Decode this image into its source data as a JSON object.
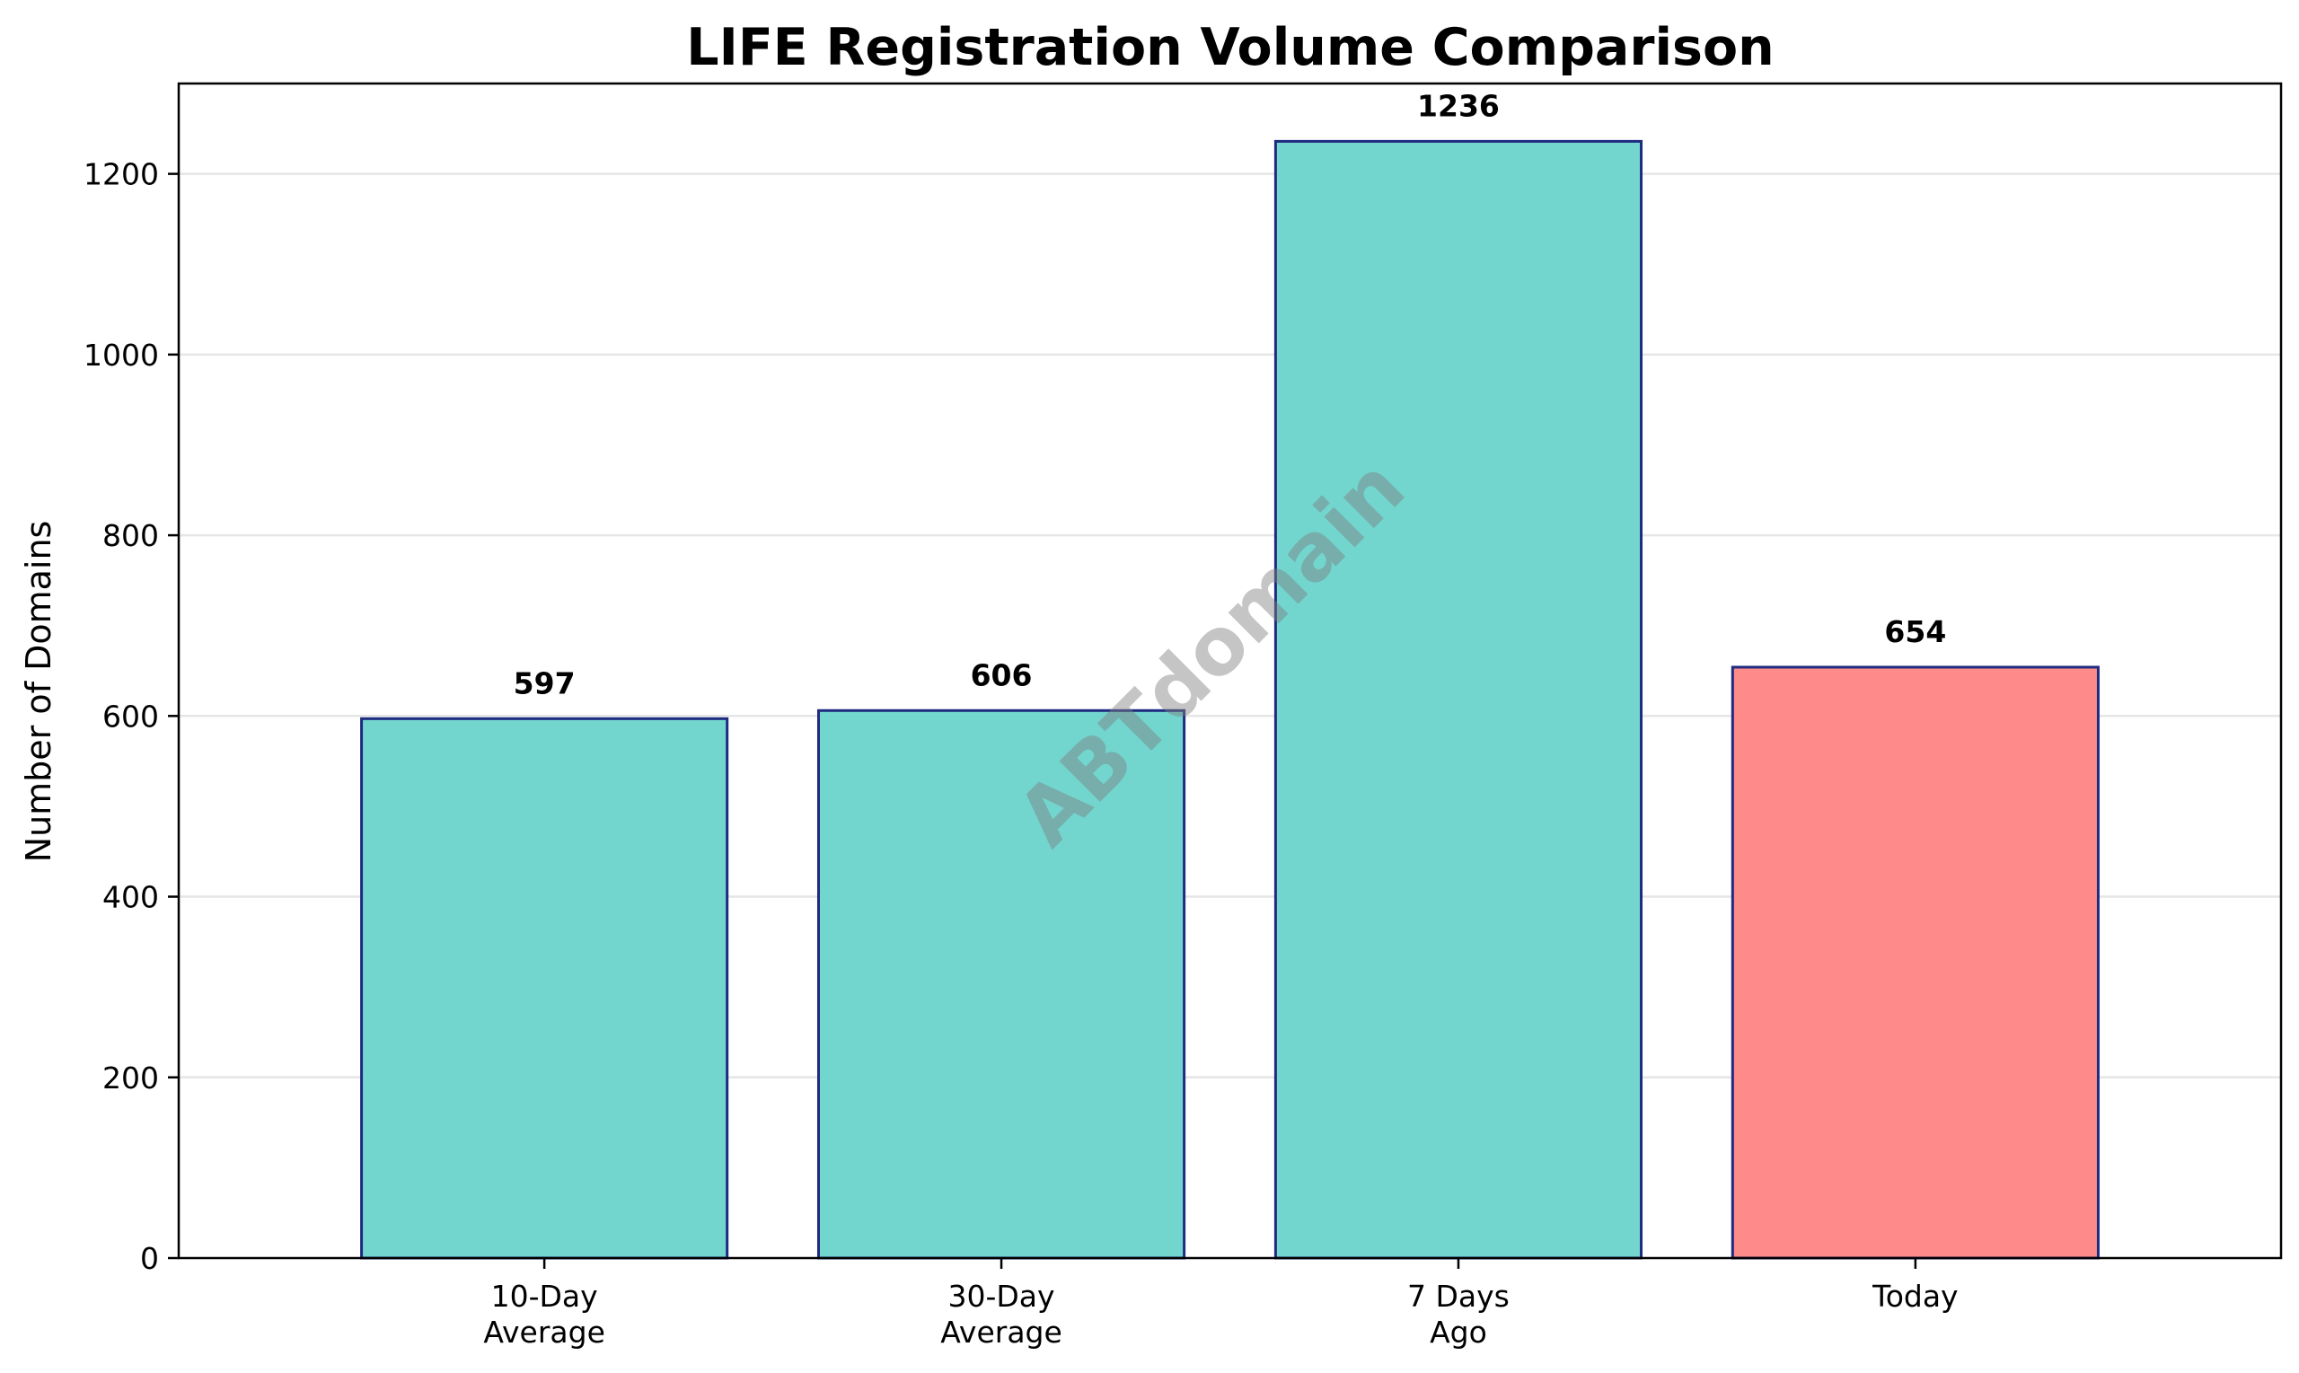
{
  "chart_data": {
    "type": "bar",
    "title": "LIFE Registration Volume Comparison",
    "xlabel": "",
    "ylabel": "Number of Domains",
    "categories": [
      [
        "10-Day",
        "Average"
      ],
      [
        "30-Day",
        "Average"
      ],
      [
        "7 Days",
        "Ago"
      ],
      [
        "Today"
      ]
    ],
    "values": [
      597,
      606,
      1236,
      654
    ],
    "data_labels": [
      "597",
      "606",
      "1236",
      "654"
    ],
    "bar_colors": [
      "#72d6cf",
      "#72d6cf",
      "#72d6cf",
      "#ff8a8a"
    ],
    "bar_edge_color": "#1f2a80",
    "ylim": [
      0,
      1300
    ],
    "yticks": [
      0,
      200,
      400,
      600,
      800,
      1000,
      1200
    ],
    "ytick_labels": [
      "0",
      "200",
      "400",
      "600",
      "800",
      "1000",
      "1200"
    ],
    "grid": "y",
    "grid_color": "#e6e6e6",
    "watermark": "ABTdomain"
  }
}
